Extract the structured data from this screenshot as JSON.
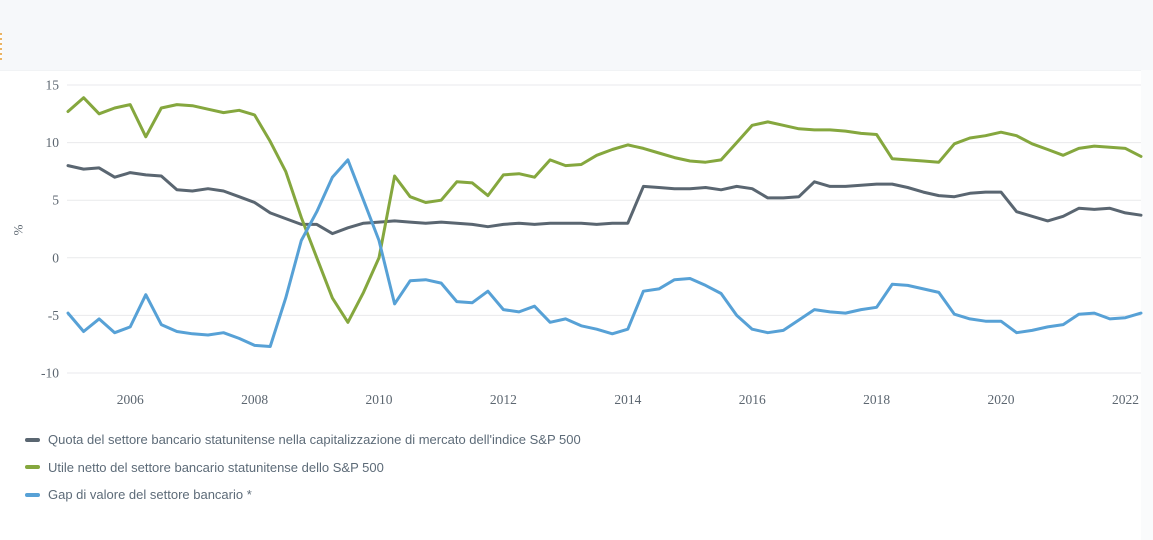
{
  "chart_data": {
    "type": "line",
    "title": "",
    "ylabel": "%",
    "xlabel": "",
    "ylim": [
      -10,
      15
    ],
    "yticks": [
      15,
      10,
      5,
      0,
      -5,
      -10
    ],
    "xticks": [
      2006,
      2008,
      2010,
      2012,
      2014,
      2016,
      2018,
      2020,
      2022
    ],
    "x_start_year": 2005,
    "x_frequency": "quarterly",
    "x_range": "2005 Q1 - 2022 Q2",
    "grid": "horizontal",
    "legend_position": "bottom-left",
    "colors": {
      "grid": "#e9eaec",
      "tick_text": "#5c6670",
      "legend_text": "#5d6b78",
      "header_band": "#f6f8fa",
      "panel": "#ffffff"
    },
    "series": [
      {
        "name": "quota-settore-bancario",
        "label": "Quota del settore bancario statunitense nella capitalizzazione di mercato dell'indice S&P 500",
        "color": "#5a6671",
        "values": [
          8.0,
          7.7,
          7.8,
          7.0,
          7.4,
          7.2,
          7.1,
          5.9,
          5.8,
          6.0,
          5.8,
          5.3,
          4.8,
          3.9,
          3.4,
          2.9,
          2.9,
          2.1,
          2.6,
          3.0,
          3.1,
          3.2,
          3.1,
          3.0,
          3.1,
          3.0,
          2.9,
          2.7,
          2.9,
          3.0,
          2.9,
          3.0,
          3.0,
          3.0,
          2.9,
          3.0,
          3.0,
          6.2,
          6.1,
          6.0,
          6.0,
          6.1,
          5.9,
          6.2,
          6.0,
          5.2,
          5.2,
          5.3,
          6.6,
          6.2,
          6.2,
          6.3,
          6.4,
          6.4,
          6.1,
          5.7,
          5.4,
          5.3,
          5.6,
          5.7,
          5.7,
          4.0,
          3.6,
          3.2,
          3.6,
          4.3,
          4.2,
          4.3,
          3.9,
          3.7
        ]
      },
      {
        "name": "utile-netto-settore-bancario",
        "label": "Utile netto del settore bancario statunitense dello S&P 500",
        "color": "#85a73e",
        "values": [
          12.7,
          13.9,
          12.5,
          13.0,
          13.3,
          10.5,
          13.0,
          13.3,
          13.2,
          12.9,
          12.6,
          12.8,
          12.4,
          10.1,
          7.5,
          3.5,
          0.0,
          -3.5,
          -5.6,
          -3.0,
          0.0,
          7.1,
          5.3,
          4.8,
          5.0,
          6.6,
          6.5,
          5.4,
          7.2,
          7.3,
          7.0,
          8.5,
          8.0,
          8.1,
          8.9,
          9.4,
          9.8,
          9.5,
          9.1,
          8.7,
          8.4,
          8.3,
          8.5,
          10.0,
          11.5,
          11.8,
          11.5,
          11.2,
          11.1,
          11.1,
          11.0,
          10.8,
          10.7,
          8.6,
          8.5,
          8.4,
          8.3,
          9.9,
          10.4,
          10.6,
          10.9,
          10.6,
          9.9,
          9.4,
          8.9,
          9.5,
          9.7,
          9.6,
          9.5,
          8.8
        ]
      },
      {
        "name": "gap-di-valore",
        "label": "Gap di valore del settore bancario *",
        "color": "#57a1d6",
        "values": [
          -4.8,
          -6.4,
          -5.3,
          -6.5,
          -6.0,
          -3.2,
          -5.8,
          -6.4,
          -6.6,
          -6.7,
          -6.5,
          -7.0,
          -7.6,
          -7.7,
          -3.5,
          1.5,
          4.0,
          7.0,
          8.5,
          5.0,
          1.5,
          -4.0,
          -2.0,
          -1.9,
          -2.2,
          -3.8,
          -3.9,
          -2.9,
          -4.5,
          -4.7,
          -4.2,
          -5.6,
          -5.3,
          -5.9,
          -6.2,
          -6.6,
          -6.2,
          -2.9,
          -2.7,
          -1.9,
          -1.8,
          -2.4,
          -3.1,
          -5.0,
          -6.2,
          -6.5,
          -6.3,
          -5.4,
          -4.5,
          -4.7,
          -4.8,
          -4.5,
          -4.3,
          -2.3,
          -2.4,
          -2.7,
          -3.0,
          -4.9,
          -5.3,
          -5.5,
          -5.5,
          -6.5,
          -6.3,
          -6.0,
          -5.8,
          -4.9,
          -4.8,
          -5.3,
          -5.2,
          -4.8
        ]
      }
    ]
  }
}
